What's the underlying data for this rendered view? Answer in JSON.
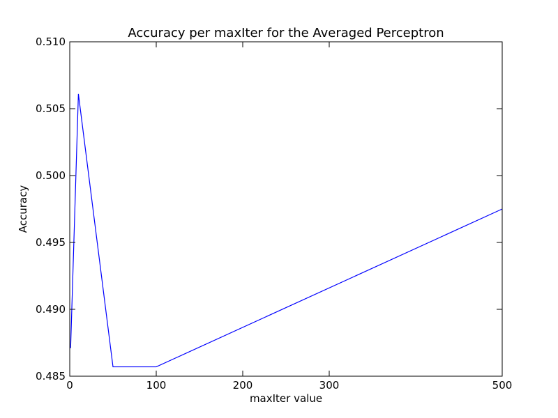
{
  "chart_data": {
    "type": "line",
    "title": "Accuracy per maxIter for the Averaged Perceptron",
    "xlabel": "maxIter value",
    "ylabel": "Accuracy",
    "xlim": [
      0,
      500
    ],
    "ylim": [
      0.485,
      0.51
    ],
    "xticks": [
      0,
      100,
      200,
      300,
      500
    ],
    "xtick_labels": [
      "0",
      "100",
      "200",
      "300",
      "500"
    ],
    "yticks": [
      0.485,
      0.49,
      0.495,
      0.5,
      0.505,
      0.51
    ],
    "ytick_labels": [
      "0.485",
      "0.490",
      "0.495",
      "0.500",
      "0.505",
      "0.510"
    ],
    "grid": false,
    "series": [
      {
        "color": "#0000ff",
        "x": [
          1,
          10,
          50,
          100,
          500
        ],
        "y": [
          0.4871,
          0.5061,
          0.4857,
          0.4857,
          0.4975
        ]
      }
    ]
  }
}
